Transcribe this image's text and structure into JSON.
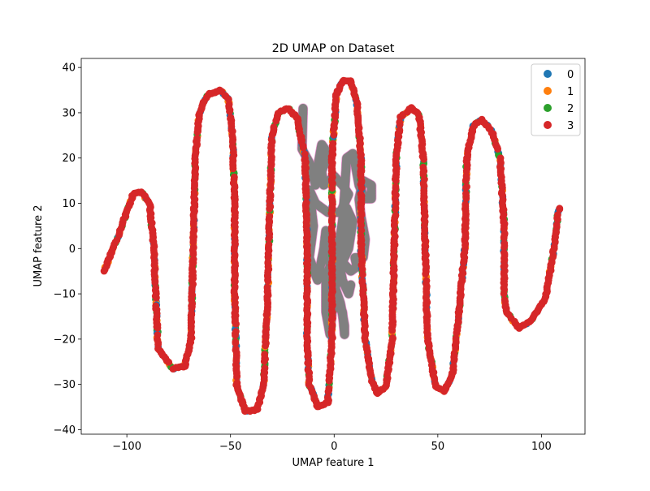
{
  "chart_data": {
    "type": "scatter",
    "title": "2D UMAP on Dataset",
    "xlabel": "UMAP feature 1",
    "ylabel": "UMAP feature 2",
    "xlim": [
      -122,
      121
    ],
    "ylim": [
      -41,
      42
    ],
    "xticks": [
      -100,
      -50,
      0,
      50,
      100
    ],
    "yticks": [
      -40,
      -30,
      -20,
      -10,
      0,
      10,
      20,
      30,
      40
    ],
    "xtick_labels": [
      "−100",
      "−50",
      "0",
      "50",
      "100"
    ],
    "ytick_labels": [
      "−40",
      "−30",
      "−20",
      "−10",
      "0",
      "10",
      "20",
      "30",
      "40"
    ],
    "grid": false,
    "legend_position": "top-right",
    "legend": [
      "0",
      "1",
      "2",
      "3"
    ],
    "series_colors": [
      "#1f77b4",
      "#ff7f0e",
      "#2ca02c",
      "#d62728"
    ],
    "extra_colors": {
      "gray_trace": "#808080",
      "pink_edge": "#e377c2"
    },
    "curve_path": [
      [
        -111,
        -5
      ],
      [
        -104,
        3
      ],
      [
        -97,
        12
      ],
      [
        -93,
        12.5
      ],
      [
        -89,
        10
      ],
      [
        -87,
        0
      ],
      [
        -86,
        -10
      ],
      [
        -85,
        -22
      ],
      [
        -78,
        -26.5
      ],
      [
        -72,
        -26
      ],
      [
        -69,
        -20
      ],
      [
        -68,
        0
      ],
      [
        -67,
        20
      ],
      [
        -65,
        30
      ],
      [
        -61,
        34
      ],
      [
        -55,
        35
      ],
      [
        -51,
        33
      ],
      [
        -49,
        25
      ],
      [
        -48,
        10
      ],
      [
        -48,
        -10
      ],
      [
        -47,
        -30
      ],
      [
        -43,
        -36
      ],
      [
        -37,
        -35.5
      ],
      [
        -34,
        -30
      ],
      [
        -32,
        -10
      ],
      [
        -31,
        10
      ],
      [
        -30,
        25
      ],
      [
        -27,
        30
      ],
      [
        -22,
        31
      ],
      [
        -18,
        29
      ],
      [
        -14,
        20
      ],
      [
        -13,
        0
      ],
      [
        -13,
        -20
      ],
      [
        -12,
        -30
      ],
      [
        -8,
        -35
      ],
      [
        -3,
        -34
      ],
      [
        -1,
        -20
      ],
      [
        -1,
        0
      ],
      [
        -1,
        20
      ],
      [
        1,
        34
      ],
      [
        4,
        37
      ],
      [
        8,
        37
      ],
      [
        11,
        32
      ],
      [
        13,
        20
      ],
      [
        13,
        0
      ],
      [
        15,
        -20
      ],
      [
        18,
        -29
      ],
      [
        21,
        -32
      ],
      [
        25,
        -30.5
      ],
      [
        28,
        -20
      ],
      [
        29,
        0
      ],
      [
        30,
        20
      ],
      [
        32,
        29
      ],
      [
        37,
        31
      ],
      [
        41,
        29.5
      ],
      [
        43,
        20
      ],
      [
        44,
        0
      ],
      [
        45,
        -20
      ],
      [
        49,
        -30.5
      ],
      [
        53,
        -31.5
      ],
      [
        57,
        -28
      ],
      [
        60,
        -15
      ],
      [
        63,
        0
      ],
      [
        64,
        20
      ],
      [
        67,
        27
      ],
      [
        71,
        28.5
      ],
      [
        76,
        26
      ],
      [
        80,
        20
      ],
      [
        82,
        5
      ],
      [
        82,
        -10
      ],
      [
        83,
        -14
      ],
      [
        89,
        -17.5
      ],
      [
        95,
        -16
      ],
      [
        102,
        -11
      ],
      [
        106,
        0
      ],
      [
        108,
        8
      ],
      [
        109,
        9
      ]
    ],
    "gray_path": [
      [
        -15,
        31
      ],
      [
        -15.5,
        22
      ],
      [
        -12,
        19
      ],
      [
        -9,
        14
      ],
      [
        -8,
        18
      ],
      [
        -6,
        23
      ],
      [
        -3,
        21
      ],
      [
        -6,
        17
      ],
      [
        -5,
        14
      ],
      [
        0,
        16
      ],
      [
        4,
        14
      ],
      [
        7,
        12
      ],
      [
        3,
        8
      ],
      [
        -3,
        8
      ],
      [
        -9,
        10
      ],
      [
        -12,
        13
      ],
      [
        -10,
        5
      ],
      [
        -12,
        -2
      ],
      [
        -8,
        -7
      ],
      [
        -5,
        0
      ],
      [
        -4,
        4
      ],
      [
        -2,
        -4
      ],
      [
        1,
        -8
      ],
      [
        2,
        -2
      ],
      [
        4,
        3
      ],
      [
        6,
        9
      ],
      [
        9,
        6
      ],
      [
        7,
        0
      ],
      [
        4,
        -3
      ],
      [
        8,
        -5
      ],
      [
        11,
        -4
      ],
      [
        10,
        -2
      ],
      [
        14,
        -2
      ],
      [
        15,
        2
      ],
      [
        13,
        7
      ],
      [
        12,
        11
      ],
      [
        14,
        15
      ],
      [
        18,
        14
      ],
      [
        18,
        11
      ],
      [
        15,
        11
      ],
      [
        12,
        14
      ],
      [
        10,
        19
      ],
      [
        9,
        21
      ],
      [
        6,
        20
      ],
      [
        5,
        12
      ],
      [
        4,
        6
      ],
      [
        2,
        0
      ],
      [
        -1,
        -5
      ],
      [
        0,
        -8
      ],
      [
        3,
        -12
      ],
      [
        5,
        -17
      ],
      [
        5,
        -19
      ],
      [
        4,
        -14
      ],
      [
        1,
        -12
      ],
      [
        -1,
        -14
      ],
      [
        -2,
        -19
      ],
      [
        -4,
        -14
      ],
      [
        -4,
        -6
      ],
      [
        -1,
        -3
      ],
      [
        2,
        -2
      ],
      [
        4,
        -7
      ],
      [
        7,
        -10
      ],
      [
        8,
        -8
      ]
    ]
  }
}
